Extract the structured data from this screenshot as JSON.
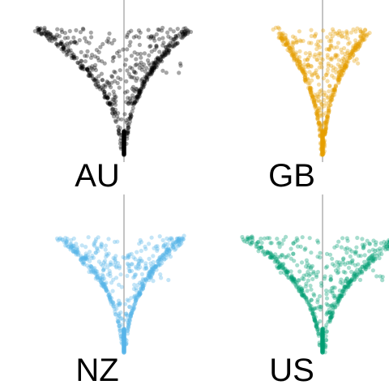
{
  "chart_data": {
    "type": "scatter",
    "facet_by": "country",
    "panels": [
      {
        "country": "AU",
        "color": "#000000"
      },
      {
        "country": "GB",
        "color": "#E69F00"
      },
      {
        "country": "NZ",
        "color": "#56B4E9"
      },
      {
        "country": "US",
        "color": "#009E73"
      }
    ],
    "x_reference_line": 0,
    "grid": false,
    "axes_visible": false,
    "point_alpha": 0.35
  }
}
